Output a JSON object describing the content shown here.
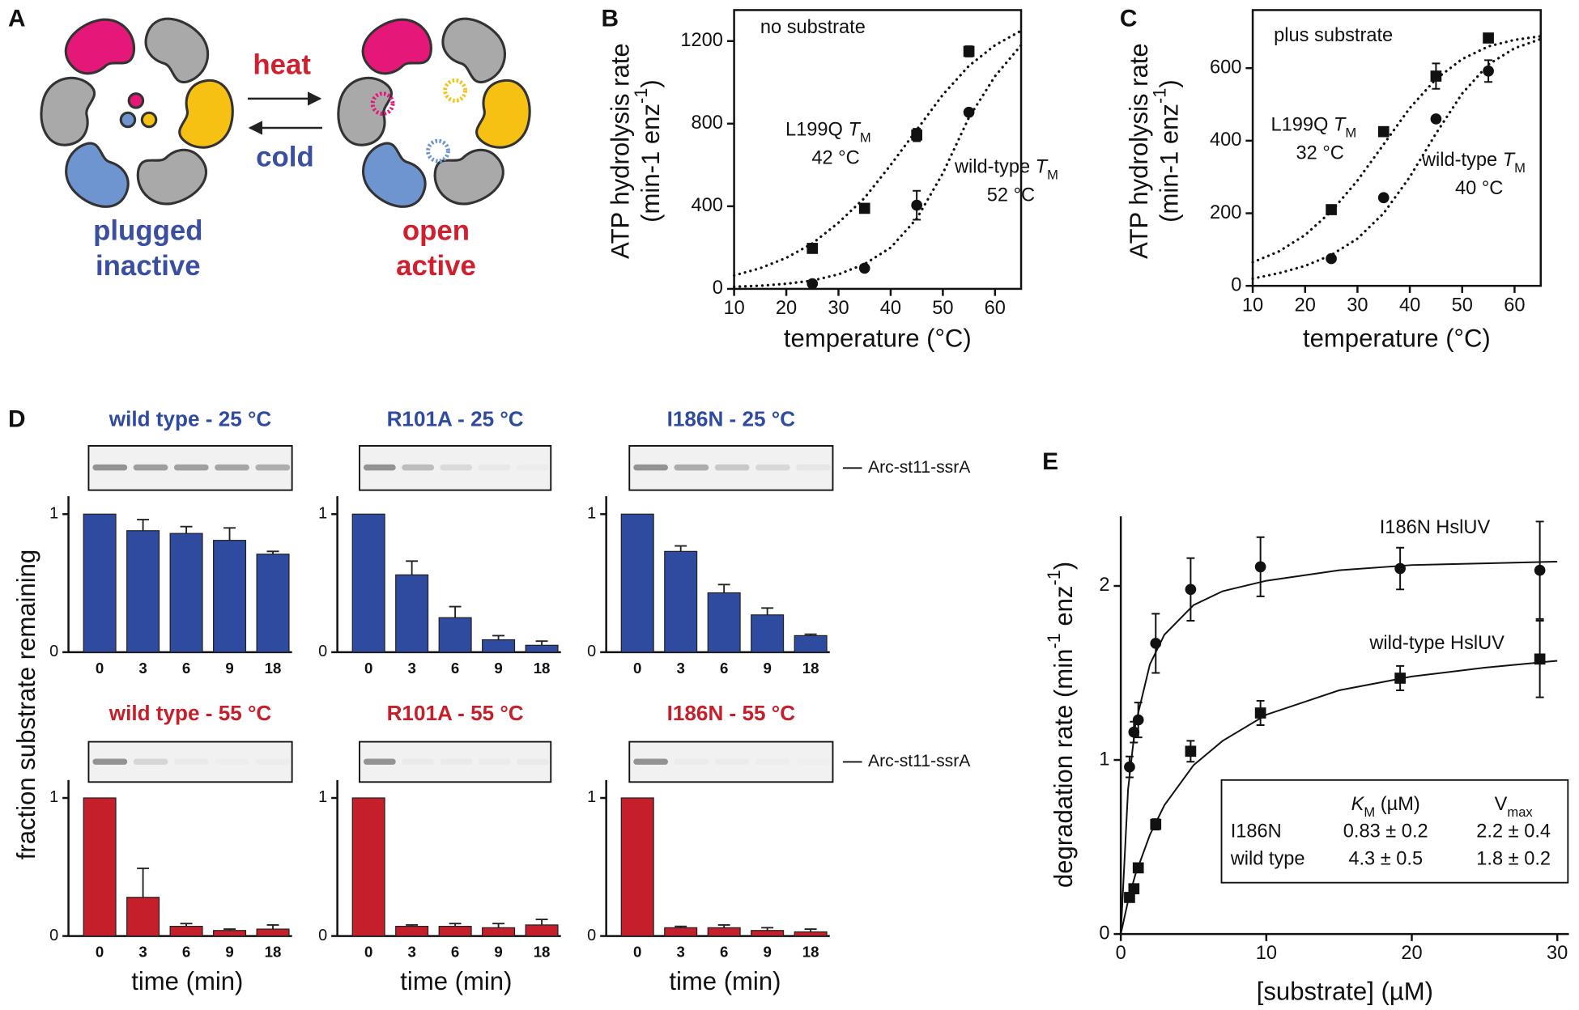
{
  "diagram": {
    "panel": "A",
    "heat": "heat",
    "cold": "cold",
    "left_state": [
      "plugged",
      "inactive"
    ],
    "right_state": [
      "open",
      "active"
    ]
  },
  "chart_data": [
    {
      "type": "scatter",
      "panel": "B",
      "ylabel": [
        [
          "ATP hydrolysis rate"
        ],
        [
          "(min-1 enz",
          {
            "sup": "-1"
          },
          ")"
        ]
      ],
      "xlabel": "temperature (°C)",
      "xlim": [
        10,
        65
      ],
      "ylim": [
        0,
        1350
      ],
      "xticks": [
        10,
        20,
        30,
        40,
        50,
        60
      ],
      "yticks": [
        0,
        400,
        800,
        1200
      ],
      "frame": true,
      "fit_style": "dotted",
      "fit_x": [
        10,
        15,
        20,
        25,
        30,
        35,
        40,
        45,
        50,
        55,
        60,
        65
      ],
      "series": [
        {
          "marker": "square",
          "color": "#111111",
          "x": [
            25,
            35,
            45,
            55
          ],
          "values": [
            196,
            390,
            745,
            1150
          ],
          "errors": [
            20,
            18,
            30,
            25
          ],
          "fit": [
            65,
            100,
            150,
            220,
            320,
            440,
            600,
            770,
            940,
            1080,
            1180,
            1250
          ]
        },
        {
          "marker": "circle",
          "color": "#111111",
          "x": [
            25,
            35,
            45,
            55
          ],
          "values": [
            25,
            100,
            405,
            855
          ],
          "errors": [
            10,
            10,
            70,
            15
          ],
          "fit": [
            10,
            15,
            25,
            40,
            70,
            120,
            200,
            340,
            560,
            830,
            1030,
            1180
          ]
        }
      ],
      "annotations": [
        [
          "no substrate"
        ],
        [
          "L199Q ",
          {
            "i": "T"
          },
          {
            "sub": "M"
          }
        ],
        [
          "42 °C"
        ],
        [
          "wild-type ",
          {
            "i": "T"
          },
          {
            "sub": "M"
          }
        ],
        [
          "52 °C"
        ]
      ]
    },
    {
      "type": "scatter",
      "panel": "C",
      "ylabel": [
        [
          "ATP hydrolysis rate"
        ],
        [
          "(min-1 enz",
          {
            "sup": "-1"
          },
          ")"
        ]
      ],
      "xlabel": "temperature (°C)",
      "xlim": [
        10,
        65
      ],
      "ylim": [
        0,
        760
      ],
      "xticks": [
        10,
        20,
        30,
        40,
        50,
        60
      ],
      "yticks": [
        0,
        200,
        400,
        600
      ],
      "frame": true,
      "fit_style": "dotted",
      "fit_x": [
        10,
        15,
        20,
        25,
        30,
        35,
        40,
        45,
        50,
        55,
        60,
        65
      ],
      "series": [
        {
          "marker": "square",
          "color": "#111111",
          "x": [
            25,
            35,
            45,
            55
          ],
          "values": [
            210,
            425,
            578,
            683
          ],
          "errors": [
            10,
            12,
            35,
            10
          ],
          "fit": [
            65,
            95,
            140,
            205,
            290,
            390,
            490,
            570,
            625,
            660,
            678,
            688
          ]
        },
        {
          "marker": "circle",
          "color": "#111111",
          "x": [
            25,
            35,
            45,
            55
          ],
          "values": [
            75,
            243,
            460,
            592
          ],
          "errors": [
            5,
            8,
            8,
            30
          ],
          "fit": [
            20,
            35,
            55,
            85,
            130,
            200,
            300,
            420,
            530,
            610,
            655,
            680
          ]
        }
      ],
      "annotations": [
        [
          "plus substrate"
        ],
        [
          "L199Q ",
          {
            "i": "T"
          },
          {
            "sub": "M"
          }
        ],
        [
          "32 °C"
        ],
        [
          "wild-type ",
          {
            "i": "T"
          },
          {
            "sub": "M"
          }
        ],
        [
          "40 °C"
        ]
      ]
    },
    {
      "type": "bar",
      "panel": "D",
      "ylabel": "fraction substrate remaining",
      "title": "wild type - 25 °C",
      "title_color": "#2f4b9f",
      "color": "#2f4b9f",
      "categories": [
        "0",
        "3",
        "6",
        "9",
        "18"
      ],
      "values": [
        1,
        0.88,
        0.86,
        0.81,
        0.71
      ],
      "errors": [
        null,
        0.08,
        0.05,
        0.09,
        0.02
      ],
      "ylim": [
        0,
        1.13
      ],
      "yticks": [
        0,
        1
      ]
    },
    {
      "type": "bar",
      "title": "R101A - 25 °C",
      "title_color": "#2f4b9f",
      "color": "#2f4b9f",
      "categories": [
        "0",
        "3",
        "6",
        "9",
        "18"
      ],
      "values": [
        1,
        0.56,
        0.25,
        0.09,
        0.05
      ],
      "errors": [
        null,
        0.1,
        0.08,
        0.03,
        0.03
      ],
      "ylim": [
        0,
        1.13
      ],
      "yticks": [
        0,
        1
      ]
    },
    {
      "type": "bar",
      "title": "I186N - 25 °C",
      "title_color": "#2f4b9f",
      "color": "#2f4b9f",
      "gel_label": "Arc-st11-ssrA",
      "categories": [
        "0",
        "3",
        "6",
        "9",
        "18"
      ],
      "values": [
        1,
        0.73,
        0.43,
        0.27,
        0.12
      ],
      "errors": [
        null,
        0.04,
        0.06,
        0.05,
        0.01
      ],
      "ylim": [
        0,
        1.13
      ],
      "yticks": [
        0,
        1
      ]
    },
    {
      "type": "bar",
      "title": "wild type - 55 °C",
      "title_color": "#c41f2b",
      "color": "#c41f2b",
      "xlabel": "time (min)",
      "categories": [
        "0",
        "3",
        "6",
        "9",
        "18"
      ],
      "values": [
        1,
        0.28,
        0.07,
        0.04,
        0.05
      ],
      "errors": [
        null,
        0.21,
        0.02,
        0.01,
        0.03
      ],
      "ylim": [
        0,
        1.13
      ],
      "yticks": [
        0,
        1
      ]
    },
    {
      "type": "bar",
      "title": "R101A - 55 °C",
      "title_color": "#c41f2b",
      "color": "#c41f2b",
      "xlabel": "time (min)",
      "categories": [
        "0",
        "3",
        "6",
        "9",
        "18"
      ],
      "values": [
        1,
        0.07,
        0.07,
        0.06,
        0.08
      ],
      "errors": [
        null,
        0.01,
        0.02,
        0.03,
        0.04
      ],
      "ylim": [
        0,
        1.13
      ],
      "yticks": [
        0,
        1
      ]
    },
    {
      "type": "bar",
      "title": "I186N - 55 °C",
      "title_color": "#c41f2b",
      "color": "#c41f2b",
      "xlabel": "time (min)",
      "gel_label": "Arc-st11-ssrA",
      "categories": [
        "0",
        "3",
        "6",
        "9",
        "18"
      ],
      "values": [
        1,
        0.06,
        0.06,
        0.04,
        0.03
      ],
      "errors": [
        null,
        0.01,
        0.02,
        0.02,
        0.02
      ],
      "ylim": [
        0,
        1.13
      ],
      "yticks": [
        0,
        1
      ]
    },
    {
      "type": "scatter",
      "panel": "E",
      "ylabel": [
        [
          "degradation rate (min",
          {
            "sup": "-1"
          },
          " enz",
          {
            "sup": "-1"
          },
          ")"
        ]
      ],
      "xlabel": "[substrate] (µM)",
      "xlim": [
        0,
        30.8
      ],
      "ylim": [
        0,
        2.4
      ],
      "xticks": [
        0,
        10,
        20,
        30
      ],
      "yticks": [
        0,
        1,
        2
      ],
      "frame": false,
      "fit_style": "solid",
      "fit_x": [
        0,
        0.5,
        1,
        2,
        3,
        5,
        7,
        10,
        15,
        20,
        25,
        30
      ],
      "series": [
        {
          "marker": "circle",
          "color": "#111111",
          "x": [
            0.6,
            0.9,
            1.2,
            2.4,
            4.8,
            9.6,
            19.2,
            28.8
          ],
          "values": [
            0.96,
            1.16,
            1.23,
            1.67,
            1.98,
            2.11,
            2.1,
            2.09
          ],
          "errors": [
            0.06,
            0.06,
            0.1,
            0.17,
            0.18,
            0.17,
            0.12,
            0.28
          ],
          "fit": [
            0,
            0.83,
            1.2,
            1.55,
            1.72,
            1.89,
            1.97,
            2.03,
            2.09,
            2.12,
            2.13,
            2.14
          ]
        },
        {
          "marker": "square",
          "color": "#111111",
          "x": [
            0.6,
            0.9,
            1.2,
            2.4,
            4.8,
            9.6,
            19.2,
            28.8
          ],
          "values": [
            0.21,
            0.26,
            0.38,
            0.63,
            1.05,
            1.27,
            1.47,
            1.58
          ],
          "errors": [
            0.02,
            0.02,
            0.02,
            0.03,
            0.06,
            0.07,
            0.07,
            0.22
          ],
          "fit": [
            0,
            0.19,
            0.34,
            0.57,
            0.74,
            0.97,
            1.11,
            1.26,
            1.4,
            1.48,
            1.53,
            1.57
          ]
        }
      ],
      "annotations": [
        [
          "I186N HslUV"
        ],
        [
          "wild-type HslUV"
        ]
      ],
      "table": {
        "header": [
          [
            {
              "i": "K"
            },
            {
              "sub": "M"
            },
            " (µM)"
          ],
          [
            "V",
            {
              "sub": "max"
            }
          ]
        ],
        "rows": [
          [
            "I186N",
            "0.83 ± 0.2",
            "2.2 ± 0.4"
          ],
          [
            "wild type",
            "4.3 ± 0.5",
            "1.8 ± 0.2"
          ]
        ]
      }
    }
  ]
}
